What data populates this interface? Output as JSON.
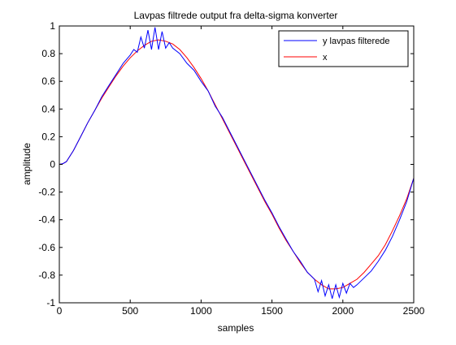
{
  "chart_data": {
    "type": "line",
    "title": "Lavpas filtrede output fra delta-sigma konverter",
    "xlabel": "samples",
    "ylabel": "amplitude",
    "xlim": [
      0,
      2500
    ],
    "ylim": [
      -1,
      1
    ],
    "xticks": [
      0,
      500,
      1000,
      1500,
      2000,
      2500
    ],
    "yticks": [
      -1,
      -0.8,
      -0.6,
      -0.4,
      -0.2,
      0,
      0.2,
      0.4,
      0.6,
      0.8,
      1
    ],
    "xtick_labels": [
      "0",
      "500",
      "1000",
      "1500",
      "2000",
      "2500"
    ],
    "ytick_labels": [
      "-1",
      "-0.8",
      "-0.6",
      "-0.4",
      "-0.2",
      "0",
      "0.2",
      "0.4",
      "0.6",
      "0.8",
      "1"
    ],
    "grid": false,
    "legend_position": "top-right",
    "series": [
      {
        "name": "y lavpas filterede",
        "color": "#0000ff",
        "x": [
          0,
          25,
          50,
          100,
          150,
          200,
          250,
          300,
          350,
          400,
          450,
          500,
          525,
          550,
          575,
          600,
          625,
          650,
          675,
          700,
          725,
          750,
          775,
          800,
          850,
          900,
          950,
          1000,
          1050,
          1100,
          1150,
          1200,
          1250,
          1300,
          1350,
          1400,
          1450,
          1500,
          1550,
          1600,
          1650,
          1700,
          1750,
          1800,
          1825,
          1850,
          1875,
          1900,
          1925,
          1950,
          1975,
          2000,
          2025,
          2050,
          2075,
          2100,
          2150,
          2200,
          2250,
          2300,
          2350,
          2400,
          2450,
          2500
        ],
        "y": [
          0,
          0.005,
          0.02,
          0.1,
          0.2,
          0.3,
          0.39,
          0.49,
          0.57,
          0.65,
          0.73,
          0.79,
          0.83,
          0.81,
          0.92,
          0.84,
          0.97,
          0.83,
          0.99,
          0.83,
          0.96,
          0.84,
          0.88,
          0.84,
          0.8,
          0.73,
          0.68,
          0.6,
          0.53,
          0.42,
          0.34,
          0.24,
          0.14,
          0.04,
          -0.06,
          -0.16,
          -0.26,
          -0.35,
          -0.45,
          -0.54,
          -0.63,
          -0.7,
          -0.78,
          -0.83,
          -0.92,
          -0.84,
          -0.95,
          -0.87,
          -0.97,
          -0.87,
          -0.96,
          -0.86,
          -0.93,
          -0.86,
          -0.89,
          -0.87,
          -0.82,
          -0.77,
          -0.7,
          -0.62,
          -0.52,
          -0.4,
          -0.27,
          -0.1
        ]
      },
      {
        "name": "x",
        "color": "#ff0000",
        "x": [
          0,
          25,
          50,
          100,
          150,
          200,
          250,
          300,
          350,
          400,
          450,
          500,
          550,
          600,
          650,
          700,
          750,
          800,
          850,
          900,
          950,
          1000,
          1050,
          1100,
          1150,
          1200,
          1250,
          1300,
          1350,
          1400,
          1450,
          1500,
          1550,
          1600,
          1650,
          1700,
          1750,
          1800,
          1850,
          1900,
          1950,
          2000,
          2050,
          2100,
          2150,
          2200,
          2250,
          2300,
          2350,
          2400,
          2450,
          2500
        ],
        "y": [
          0,
          0.005,
          0.02,
          0.1,
          0.2,
          0.3,
          0.39,
          0.48,
          0.56,
          0.64,
          0.71,
          0.77,
          0.82,
          0.86,
          0.89,
          0.9,
          0.89,
          0.87,
          0.83,
          0.77,
          0.7,
          0.62,
          0.53,
          0.43,
          0.33,
          0.23,
          0.13,
          0.03,
          -0.07,
          -0.17,
          -0.27,
          -0.36,
          -0.46,
          -0.55,
          -0.63,
          -0.71,
          -0.78,
          -0.83,
          -0.87,
          -0.9,
          -0.9,
          -0.89,
          -0.86,
          -0.83,
          -0.78,
          -0.72,
          -0.66,
          -0.58,
          -0.48,
          -0.37,
          -0.25,
          -0.1
        ]
      }
    ]
  }
}
